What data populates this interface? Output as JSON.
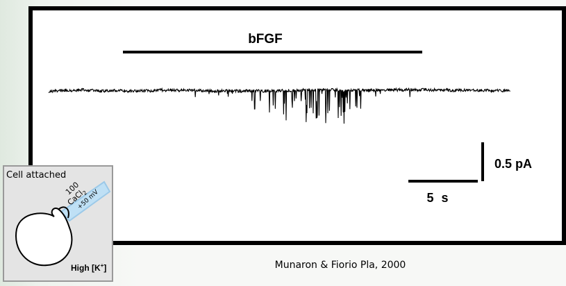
{
  "figure": {
    "label": "bFGF",
    "scale_current": "0.5 pA",
    "scale_time": "5 s"
  },
  "inset": {
    "title": "Cell attached",
    "concentration": "100",
    "salt": "CaCl",
    "salt_subscript": "2",
    "voltage": "+50 mV",
    "bath": "High [K",
    "bath_superscript": "+",
    "bath_end": "]"
  },
  "citation": "Munaron & Fiorio Pla, 2000"
}
